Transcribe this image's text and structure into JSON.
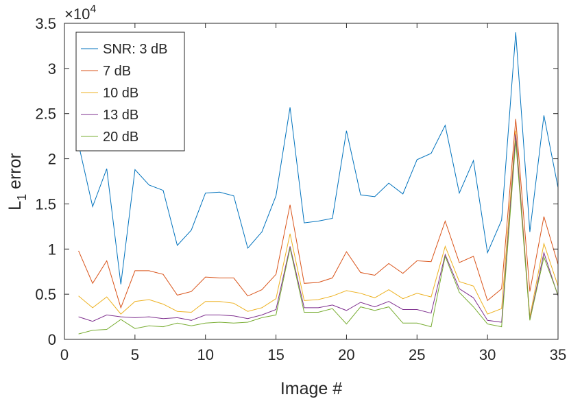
{
  "chart_data": {
    "type": "line",
    "xlabel": "Image #",
    "ylabel_main": "L",
    "ylabel_sub": "1",
    "ylabel_rest": " error",
    "exponent_base": "×10",
    "exponent_power": "4",
    "xlim": [
      0,
      35
    ],
    "ylim": [
      0,
      35000
    ],
    "xticks": [
      0,
      5,
      10,
      15,
      20,
      25,
      30,
      35
    ],
    "xtick_labels": [
      "0",
      "5",
      "10",
      "15",
      "20",
      "25",
      "30",
      "35"
    ],
    "yticks": [
      0,
      5000,
      10000,
      15000,
      20000,
      25000,
      30000,
      35000
    ],
    "ytick_labels": [
      "0",
      "0.5",
      "1",
      "1.5",
      "2",
      "2.5",
      "3",
      "3.5"
    ],
    "grid": false,
    "legend_position": "top-left",
    "x": [
      1,
      2,
      3,
      4,
      5,
      6,
      7,
      8,
      9,
      10,
      11,
      12,
      13,
      14,
      15,
      16,
      17,
      18,
      19,
      20,
      21,
      22,
      23,
      24,
      25,
      26,
      27,
      28,
      29,
      30,
      31,
      32,
      33,
      34,
      35
    ],
    "series": [
      {
        "name": "SNR: 3 dB",
        "color": "#0072bd",
        "values": [
          21600,
          14700,
          18900,
          6100,
          18800,
          17100,
          16500,
          10400,
          12100,
          16200,
          16300,
          15900,
          10100,
          11900,
          15900,
          25700,
          12900,
          13100,
          13400,
          23100,
          16000,
          15800,
          17300,
          16100,
          19900,
          20600,
          23700,
          16200,
          19800,
          9600,
          13200,
          34000,
          11900,
          24800,
          16800
        ]
      },
      {
        "name": "7 dB",
        "color": "#d95319",
        "values": [
          9800,
          6200,
          8700,
          3500,
          7600,
          7600,
          7200,
          4900,
          5300,
          6900,
          6800,
          6800,
          4800,
          5500,
          7200,
          14900,
          6200,
          6300,
          6800,
          9700,
          7400,
          7100,
          8400,
          7300,
          8700,
          8600,
          13100,
          8500,
          9200,
          4300,
          5600,
          24400,
          5300,
          13600,
          8300
        ]
      },
      {
        "name": "10 dB",
        "color": "#edb120",
        "values": [
          4800,
          3500,
          4700,
          2800,
          4200,
          4400,
          3900,
          3100,
          3000,
          4200,
          4200,
          4000,
          3100,
          3500,
          4500,
          11700,
          4300,
          4400,
          4800,
          5400,
          5100,
          4600,
          5500,
          4500,
          5100,
          4700,
          10300,
          6400,
          5900,
          2800,
          3400,
          23100,
          2500,
          10600,
          5900
        ]
      },
      {
        "name": "13 dB",
        "color": "#7e2f8e",
        "values": [
          2500,
          2000,
          2700,
          2500,
          2400,
          2500,
          2300,
          2400,
          2100,
          2700,
          2700,
          2600,
          2300,
          2700,
          3300,
          10300,
          3500,
          3500,
          3800,
          3200,
          4100,
          3600,
          4200,
          3300,
          3300,
          2900,
          9400,
          5600,
          4600,
          2100,
          1900,
          22700,
          2200,
          9600,
          4800
        ]
      },
      {
        "name": "20 dB",
        "color": "#77ac30",
        "values": [
          600,
          1000,
          1100,
          2200,
          1200,
          1500,
          1400,
          1800,
          1500,
          1800,
          1900,
          1800,
          1900,
          2400,
          2700,
          10100,
          3000,
          3000,
          3400,
          1700,
          3600,
          3200,
          3600,
          1800,
          1800,
          1400,
          9200,
          5200,
          3600,
          1700,
          1400,
          22000,
          2100,
          9100,
          4900
        ]
      }
    ]
  }
}
